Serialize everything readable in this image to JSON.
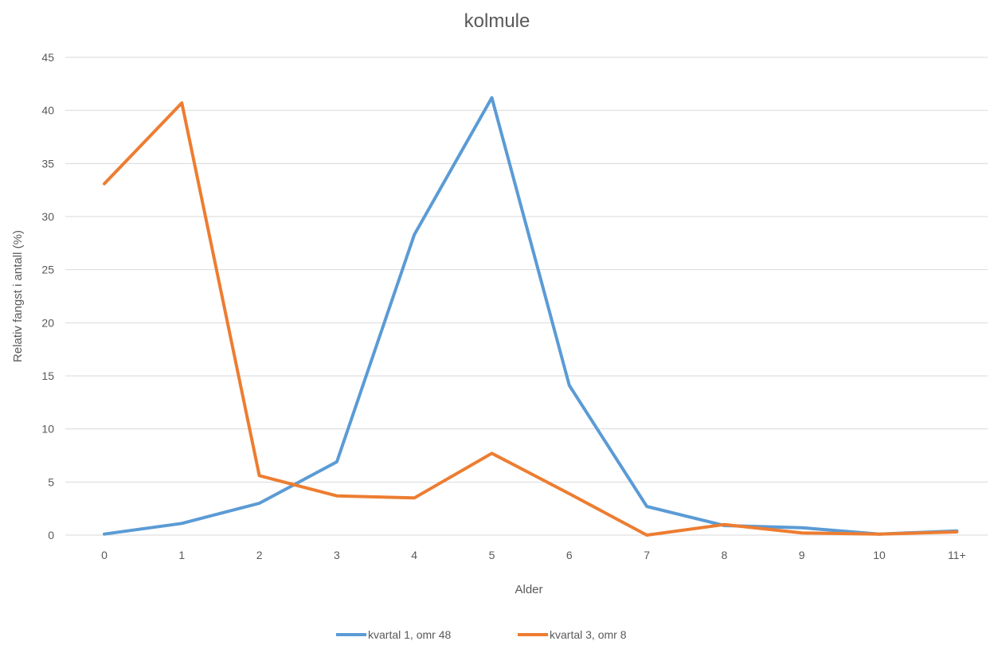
{
  "chart_data": {
    "type": "line",
    "title": "kolmule",
    "xlabel": "Alder",
    "ylabel": "Relativ fangst i antall (%)",
    "categories": [
      "0",
      "1",
      "2",
      "3",
      "4",
      "5",
      "6",
      "7",
      "8",
      "9",
      "10",
      "11+"
    ],
    "ylim": [
      0,
      45
    ],
    "yticks": [
      0,
      5,
      10,
      15,
      20,
      25,
      30,
      35,
      40,
      45
    ],
    "grid": true,
    "legend_position": "bottom",
    "series": [
      {
        "name": "kvartal 1, omr 48",
        "color": "#5b9bd5",
        "values": [
          0.1,
          1.1,
          3.0,
          6.9,
          28.3,
          41.2,
          14.1,
          2.7,
          0.9,
          0.7,
          0.1,
          0.4
        ]
      },
      {
        "name": "kvartal 3, omr 8",
        "color": "#ed7d31",
        "values": [
          33.1,
          40.7,
          5.6,
          3.7,
          3.5,
          7.7,
          3.9,
          0.0,
          1.0,
          0.2,
          0.1,
          0.3
        ]
      }
    ]
  }
}
